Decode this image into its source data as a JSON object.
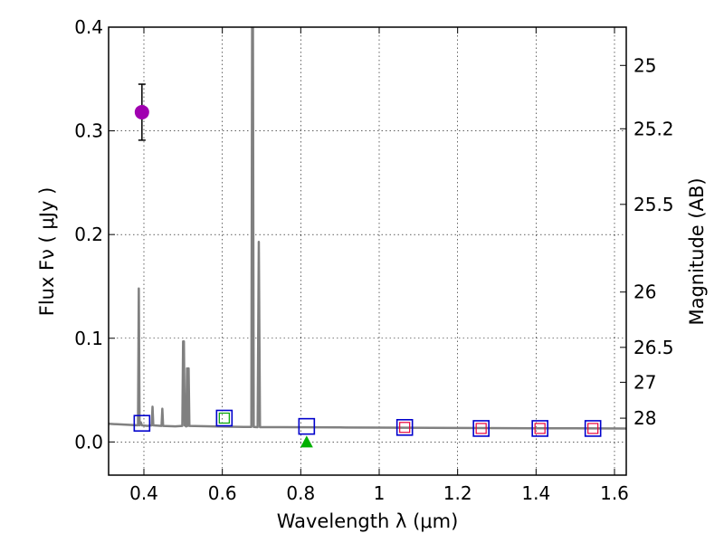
{
  "chart_data": {
    "type": "scatter",
    "xlabel": "Wavelength  λ (μm)",
    "ylabel": "Flux  Fν  ( μJy )",
    "y2label": "Magnitude (AB)",
    "xlim": [
      0.31,
      1.63
    ],
    "ylim": [
      -0.032,
      0.4
    ],
    "grid": true,
    "x_ticks": [
      0.4,
      0.6,
      0.8,
      1.0,
      1.2,
      1.4,
      1.6
    ],
    "x_tick_labels": [
      "0.4",
      "0.6",
      "0.8",
      "1",
      "1.2",
      "1.4",
      "1.6"
    ],
    "y_ticks": [
      0.0,
      0.1,
      0.2,
      0.3,
      0.4
    ],
    "y_tick_labels": [
      "0.0",
      "0.1",
      "0.2",
      "0.3",
      "0.4"
    ],
    "mag_ticks": [
      25,
      25.2,
      25.5,
      26,
      26.5,
      27,
      28
    ],
    "mag_tick_labels": [
      "25",
      "25.2",
      "25.5",
      "26",
      "26.5",
      "27",
      "28"
    ],
    "colors": {
      "spectrum": "#808080",
      "model_squares": "#0000cc",
      "obs_squares_red": "#e8003a",
      "obs_square_green": "#00a000",
      "detection_point": "#a000b0",
      "upper_limit_triangle": "#00b000",
      "errorbar": "#000000"
    },
    "series": [
      {
        "name": "model spectrum",
        "kind": "line",
        "points": [
          [
            0.31,
            0.0175
          ],
          [
            0.36,
            0.0165
          ],
          [
            0.385,
            0.016
          ],
          [
            0.387,
            0.148
          ],
          [
            0.389,
            0.016
          ],
          [
            0.392,
            0.019
          ],
          [
            0.395,
            0.016
          ],
          [
            0.41,
            0.0155
          ],
          [
            0.42,
            0.016
          ],
          [
            0.422,
            0.034
          ],
          [
            0.424,
            0.016
          ],
          [
            0.445,
            0.0155
          ],
          [
            0.447,
            0.032
          ],
          [
            0.449,
            0.0155
          ],
          [
            0.48,
            0.015
          ],
          [
            0.498,
            0.0155
          ],
          [
            0.5,
            0.097
          ],
          [
            0.502,
            0.097
          ],
          [
            0.504,
            0.016
          ],
          [
            0.508,
            0.015
          ],
          [
            0.51,
            0.071
          ],
          [
            0.512,
            0.0155
          ],
          [
            0.514,
            0.071
          ],
          [
            0.516,
            0.0155
          ],
          [
            0.6,
            0.0148
          ],
          [
            0.655,
            0.0145
          ],
          [
            0.674,
            0.0145
          ],
          [
            0.676,
            0.4
          ],
          [
            0.678,
            0.4
          ],
          [
            0.68,
            0.0145
          ],
          [
            0.69,
            0.0143
          ],
          [
            0.693,
            0.193
          ],
          [
            0.696,
            0.0143
          ],
          [
            0.75,
            0.0142
          ],
          [
            0.82,
            0.0141
          ],
          [
            0.9,
            0.014
          ],
          [
            1.0,
            0.0138
          ],
          [
            1.2,
            0.0135
          ],
          [
            1.4,
            0.0132
          ],
          [
            1.63,
            0.013
          ]
        ]
      },
      {
        "name": "model photometry",
        "kind": "open-square",
        "x": [
          0.395,
          0.605,
          0.815,
          1.065,
          1.26,
          1.41,
          1.545
        ],
        "y": [
          0.018,
          0.023,
          0.015,
          0.014,
          0.013,
          0.013,
          0.013
        ]
      },
      {
        "name": "observed fluxes",
        "kind": "small-open-square",
        "x": [
          0.605,
          1.065,
          1.26,
          1.41,
          1.545
        ],
        "y": [
          0.023,
          0.014,
          0.013,
          0.013,
          0.013
        ],
        "colors": [
          "#00a000",
          "#e8003a",
          "#e8003a",
          "#e8003a",
          "#e8003a"
        ]
      },
      {
        "name": "detection",
        "kind": "filled-circle",
        "x": [
          0.395
        ],
        "y": [
          0.318
        ],
        "yerr": [
          0.027
        ]
      },
      {
        "name": "upper limit",
        "kind": "triangle",
        "x": [
          0.815
        ],
        "y": [
          0.0
        ]
      }
    ]
  }
}
